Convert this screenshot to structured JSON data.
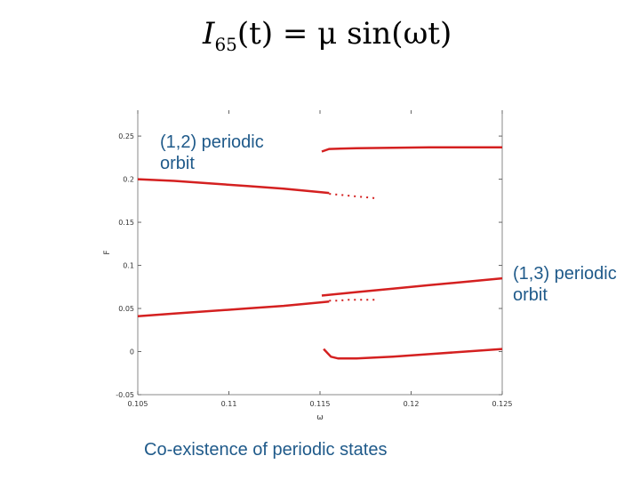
{
  "title_formula": {
    "lhs": "I",
    "sub": "65",
    "rest": "(t) = μ sin(ωt)"
  },
  "annotations": {
    "orbit_1_2": "(1,2) periodic orbit",
    "orbit_1_3": "(1,3) periodic orbit"
  },
  "caption": "Co-existence of periodic states",
  "chart_data": {
    "type": "scatter",
    "xlabel": "ω",
    "ylabel": "F",
    "xlim": [
      0.105,
      0.125
    ],
    "ylim": [
      -0.05,
      0.28
    ],
    "xticks": [
      "0.105",
      "0.11",
      "0.115",
      "0.12",
      "0.125"
    ],
    "xtick_values": [
      0.105,
      0.11,
      0.115,
      0.12,
      0.125
    ],
    "yticks": [
      "-0.05",
      "0",
      "0.05",
      "0.1",
      "0.15",
      "0.2",
      "0.25"
    ],
    "ytick_values": [
      -0.05,
      0,
      0.05,
      0.1,
      0.15,
      0.2,
      0.25
    ],
    "grid": false,
    "color": "#d42020",
    "branches": [
      {
        "x": [
          0.105,
          0.107,
          0.109,
          0.111,
          0.113,
          0.115,
          0.1155
        ],
        "y": [
          0.2,
          0.198,
          0.195,
          0.192,
          0.189,
          0.185,
          0.184
        ]
      },
      {
        "x": [
          0.105,
          0.107,
          0.109,
          0.111,
          0.113,
          0.115,
          0.1155
        ],
        "y": [
          0.041,
          0.044,
          0.047,
          0.05,
          0.053,
          0.057,
          0.058
        ]
      },
      {
        "x": [
          0.1151,
          0.1155,
          0.117,
          0.119,
          0.121,
          0.123,
          0.125
        ],
        "y": [
          0.232,
          0.235,
          0.236,
          0.2365,
          0.237,
          0.237,
          0.237
        ]
      },
      {
        "x": [
          0.1151,
          0.117,
          0.119,
          0.121,
          0.123,
          0.125
        ],
        "y": [
          0.065,
          0.069,
          0.073,
          0.077,
          0.081,
          0.085
        ]
      },
      {
        "x": [
          0.1152,
          0.1156,
          0.116,
          0.117,
          0.119,
          0.121,
          0.123,
          0.125
        ],
        "y": [
          0.003,
          -0.006,
          -0.008,
          -0.008,
          -0.006,
          -0.003,
          0.0,
          0.003
        ]
      },
      {
        "x": [
          0.1155,
          0.116,
          0.1165,
          0.117,
          0.1175,
          0.118
        ],
        "y": [
          0.183,
          0.182,
          0.181,
          0.18,
          0.179,
          0.178
        ]
      },
      {
        "x": [
          0.1155,
          0.116,
          0.1165,
          0.117,
          0.1175,
          0.118
        ],
        "y": [
          0.059,
          0.059,
          0.06,
          0.06,
          0.06,
          0.06
        ]
      }
    ]
  }
}
